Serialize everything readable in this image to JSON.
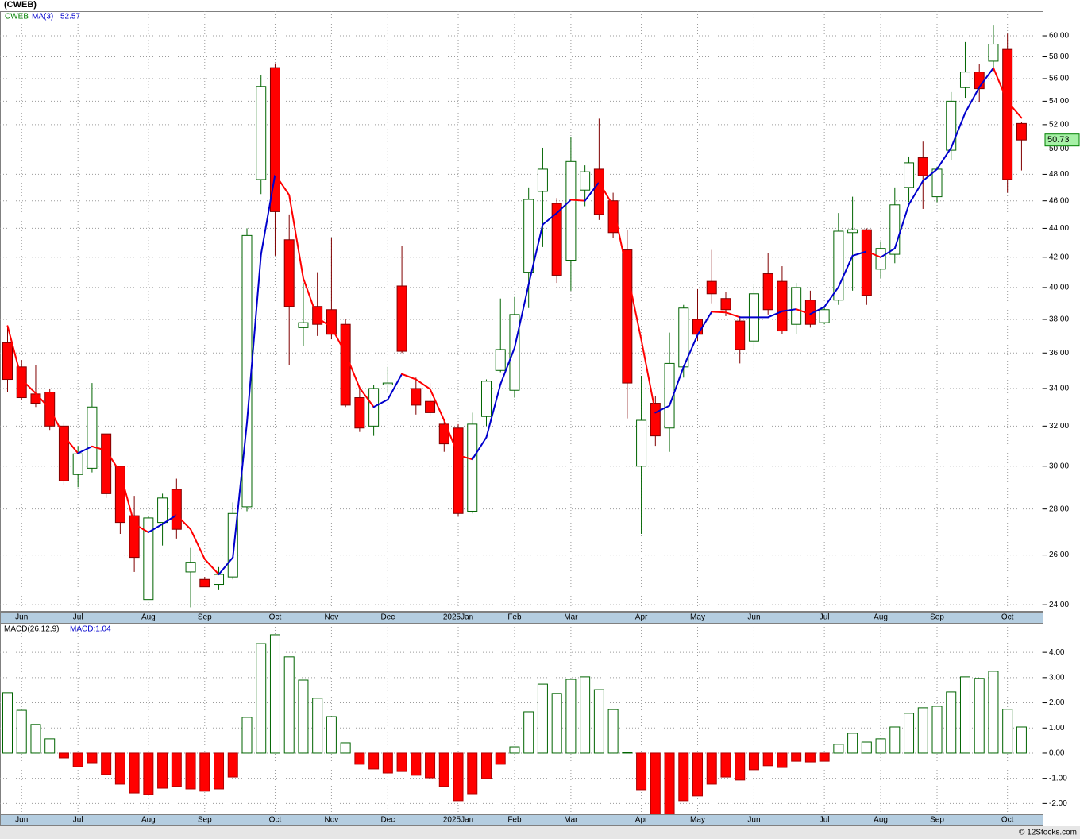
{
  "chart_data": [
    {
      "type": "candlestick",
      "title": "(CWEB)",
      "name": "CWEB",
      "log": true,
      "grid": true,
      "up_color": "#006400",
      "down_color": "#ff0000",
      "open": [
        36.6,
        35.2,
        33.7,
        33.8,
        32.0,
        29.6,
        29.9,
        31.6,
        30.0,
        27.7,
        24.2,
        27.4,
        28.9,
        25.3,
        25.0,
        24.8,
        25.1,
        28.1,
        47.6,
        57.0,
        43.2,
        37.5,
        38.8,
        38.6,
        37.7,
        33.5,
        32.0,
        34.2,
        40.1,
        34.0,
        33.3,
        32.1,
        31.9,
        27.9,
        32.5,
        35.0,
        33.9,
        41.0,
        46.7,
        45.8,
        41.8,
        46.8,
        48.4,
        46.0,
        42.5,
        30.0,
        33.2,
        31.9,
        35.2,
        38.0,
        40.4,
        39.3,
        37.9,
        36.7,
        40.9,
        40.4,
        37.7,
        39.2,
        37.8,
        39.2,
        43.7,
        43.9,
        41.2,
        42.2,
        47.0,
        49.3,
        46.3,
        49.9,
        55.2,
        56.6,
        57.6,
        58.7,
        52.1
      ],
      "high": [
        37.5,
        35.6,
        35.3,
        34.0,
        32.2,
        31.0,
        34.3,
        31.6,
        30.0,
        28.6,
        27.7,
        28.7,
        29.4,
        26.3,
        25.1,
        25.5,
        28.3,
        44.0,
        56.3,
        57.4,
        45.0,
        40.3,
        41.0,
        43.3,
        38.0,
        34.1,
        34.2,
        35.2,
        42.8,
        34.6,
        34.3,
        32.3,
        32.1,
        32.7,
        34.5,
        39.3,
        39.4,
        47.0,
        50.1,
        46.2,
        51.0,
        48.7,
        52.5,
        46.6,
        43.9,
        34.7,
        33.6,
        37.2,
        38.9,
        39.9,
        42.5,
        39.7,
        38.2,
        40.2,
        42.3,
        41.4,
        40.3,
        39.8,
        38.8,
        45.1,
        46.3,
        44.0,
        43.1,
        47.0,
        49.4,
        50.6,
        48.6,
        54.8,
        59.4,
        57.3,
        61.0,
        60.2,
        52.2
      ],
      "low": [
        33.8,
        33.4,
        33.0,
        31.8,
        29.1,
        29.0,
        29.7,
        28.5,
        26.9,
        25.3,
        24.2,
        26.4,
        26.7,
        23.9,
        24.7,
        24.6,
        25.0,
        27.9,
        46.5,
        42.1,
        35.3,
        36.4,
        37.0,
        36.8,
        33.0,
        31.7,
        31.5,
        33.8,
        36.0,
        32.6,
        32.5,
        30.7,
        27.7,
        27.8,
        32.0,
        34.9,
        33.5,
        38.7,
        42.7,
        40.3,
        39.8,
        45.6,
        44.6,
        43.3,
        32.4,
        26.9,
        31.0,
        30.7,
        34.6,
        36.7,
        39.0,
        38.2,
        35.4,
        36.2,
        38.3,
        37.1,
        37.1,
        37.5,
        37.7,
        38.9,
        39.8,
        38.9,
        40.6,
        41.6,
        45.9,
        45.4,
        45.9,
        49.1,
        54.3,
        53.9,
        56.7,
        46.6,
        48.3
      ],
      "close": [
        34.5,
        33.5,
        33.2,
        32.0,
        29.3,
        30.6,
        33.0,
        28.7,
        27.4,
        25.9,
        27.6,
        28.5,
        27.1,
        25.7,
        24.7,
        25.2,
        27.8,
        43.5,
        55.3,
        45.2,
        38.8,
        37.8,
        37.7,
        37.1,
        33.1,
        31.9,
        34.0,
        34.3,
        36.1,
        33.1,
        32.7,
        31.1,
        27.8,
        32.1,
        34.4,
        36.2,
        38.3,
        46.1,
        48.4,
        40.8,
        49.0,
        48.2,
        45.0,
        43.7,
        34.3,
        32.3,
        31.5,
        35.4,
        38.7,
        37.1,
        39.6,
        38.6,
        36.2,
        39.6,
        38.6,
        37.3,
        40.0,
        37.7,
        38.6,
        43.8,
        43.9,
        39.5,
        42.6,
        45.7,
        48.9,
        47.9,
        48.4,
        54.0,
        56.6,
        55.1,
        59.2,
        47.6,
        50.73
      ],
      "last_price": 50.73,
      "ma": {
        "name": "MA(3)",
        "last": 52.57,
        "up_color": "#0000cc",
        "down_color": "#ff0000",
        "values": [
          37.6,
          34.5,
          33.73,
          32.9,
          31.5,
          30.63,
          30.97,
          30.77,
          29.7,
          27.33,
          26.97,
          27.33,
          27.73,
          27.1,
          25.83,
          25.2,
          25.9,
          32.17,
          42.2,
          48.0,
          46.43,
          40.6,
          38.1,
          37.53,
          35.97,
          34.03,
          33.0,
          33.4,
          34.8,
          34.5,
          33.97,
          32.3,
          30.53,
          30.33,
          31.43,
          34.23,
          36.3,
          40.2,
          44.27,
          45.1,
          46.07,
          46.0,
          47.4,
          45.63,
          41.0,
          36.77,
          32.7,
          33.07,
          35.2,
          37.07,
          38.47,
          38.43,
          38.13,
          38.13,
          38.13,
          38.5,
          38.63,
          38.33,
          38.77,
          40.03,
          42.1,
          42.4,
          42.0,
          42.6,
          45.73,
          47.5,
          48.4,
          50.1,
          53.0,
          55.23,
          56.97,
          53.97,
          52.57
        ]
      },
      "ylim": [
        23.73,
        62.43
      ],
      "yticks": [
        {
          "value": 24,
          "label": "24.00"
        },
        {
          "value": 26,
          "label": "26.00"
        },
        {
          "value": 28,
          "label": "28.00"
        },
        {
          "value": 30,
          "label": "30.00"
        },
        {
          "value": 32,
          "label": "32.00"
        },
        {
          "value": 34,
          "label": "34.00"
        },
        {
          "value": 36,
          "label": "36.00"
        },
        {
          "value": 38,
          "label": "38.00"
        },
        {
          "value": 40,
          "label": "40.00"
        },
        {
          "value": 42,
          "label": "42.00"
        },
        {
          "value": 44,
          "label": "44.00"
        },
        {
          "value": 46,
          "label": "46.00"
        },
        {
          "value": 48,
          "label": "48.00"
        },
        {
          "value": 50,
          "label": "50.00"
        },
        {
          "value": 52,
          "label": "52.00"
        },
        {
          "value": 54,
          "label": "54.00"
        },
        {
          "value": 56,
          "label": "56.00"
        },
        {
          "value": 58,
          "label": "58.00"
        },
        {
          "value": 60,
          "label": "60.00"
        }
      ],
      "xticks": [
        {
          "value": 1,
          "label": "Jun"
        },
        {
          "value": 5,
          "label": "Jul"
        },
        {
          "value": 10,
          "label": "Aug"
        },
        {
          "value": 14,
          "label": "Sep"
        },
        {
          "value": 19,
          "label": "Oct"
        },
        {
          "value": 23,
          "label": "Nov"
        },
        {
          "value": 27,
          "label": "Dec"
        },
        {
          "value": 32,
          "label": "2025Jan"
        },
        {
          "value": 36,
          "label": "Feb"
        },
        {
          "value": 40,
          "label": "Mar"
        },
        {
          "value": 45,
          "label": "Apr"
        },
        {
          "value": 49,
          "label": "May"
        },
        {
          "value": 53,
          "label": "Jun"
        },
        {
          "value": 58,
          "label": "Jul"
        },
        {
          "value": 62,
          "label": "Aug"
        },
        {
          "value": 66,
          "label": "Sep"
        },
        {
          "value": 71,
          "label": "Oct"
        }
      ]
    },
    {
      "type": "bar",
      "name": "MACD(26,12,9)",
      "label": "MACD:1.04",
      "grid": true,
      "up_color": "#006400",
      "down_color": "#ff0000",
      "values": [
        2.4,
        1.7,
        1.14,
        0.57,
        -0.19,
        -0.54,
        -0.38,
        -0.85,
        -1.23,
        -1.58,
        -1.64,
        -1.39,
        -1.32,
        -1.42,
        -1.51,
        -1.42,
        -0.95,
        1.42,
        4.35,
        4.7,
        3.82,
        2.9,
        2.18,
        1.45,
        0.41,
        -0.44,
        -0.63,
        -0.79,
        -0.73,
        -0.88,
        -0.98,
        -1.32,
        -1.89,
        -1.61,
        -1.01,
        -0.44,
        0.25,
        1.64,
        2.74,
        2.37,
        2.93,
        3.03,
        2.52,
        1.73,
        0.02,
        -1.45,
        -2.6,
        -2.5,
        -1.89,
        -1.7,
        -1.23,
        -0.95,
        -1.07,
        -0.66,
        -0.5,
        -0.57,
        -0.32,
        -0.35,
        -0.32,
        0.35,
        0.79,
        0.44,
        0.57,
        1.04,
        1.58,
        1.8,
        1.86,
        2.43,
        3.03,
        2.97,
        3.25,
        1.74,
        1.04
      ],
      "ylim": [
        -2.43,
        5.14
      ],
      "yticks": [
        {
          "value": -2,
          "label": "-2.00"
        },
        {
          "value": -1,
          "label": "-1.00"
        },
        {
          "value": 0,
          "label": "0.00"
        },
        {
          "value": 1,
          "label": "1.00"
        },
        {
          "value": 2,
          "label": "2.00"
        },
        {
          "value": 3,
          "label": "3.00"
        },
        {
          "value": 4,
          "label": "4.00"
        }
      ],
      "xticks": [
        {
          "value": 1,
          "label": "Jun"
        },
        {
          "value": 5,
          "label": "Jul"
        },
        {
          "value": 10,
          "label": "Aug"
        },
        {
          "value": 14,
          "label": "Sep"
        },
        {
          "value": 19,
          "label": "Oct"
        },
        {
          "value": 23,
          "label": "Nov"
        },
        {
          "value": 27,
          "label": "Dec"
        },
        {
          "value": 32,
          "label": "2025Jan"
        },
        {
          "value": 36,
          "label": "Feb"
        },
        {
          "value": 40,
          "label": "Mar"
        },
        {
          "value": 45,
          "label": "Apr"
        },
        {
          "value": 49,
          "label": "May"
        },
        {
          "value": 53,
          "label": "Jun"
        },
        {
          "value": 58,
          "label": "Jul"
        },
        {
          "value": 62,
          "label": "Aug"
        },
        {
          "value": 66,
          "label": "Sep"
        },
        {
          "value": 71,
          "label": "Oct"
        }
      ]
    }
  ],
  "footer": "© 12Stocks.com"
}
